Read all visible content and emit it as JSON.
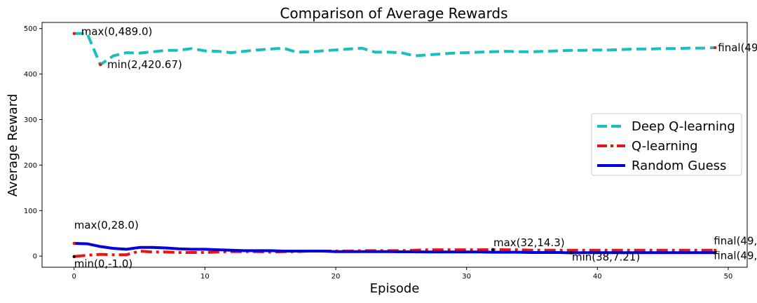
{
  "chart_data": {
    "type": "line",
    "title": "Comparison of Average Rewards",
    "xlabel": "Episode",
    "ylabel": "Average Reward",
    "xlim": [
      -2.45,
      51.45
    ],
    "ylim": [
      -24.4,
      513.4
    ],
    "xticks": [
      "0",
      "10",
      "20",
      "30",
      "40",
      "50"
    ],
    "yticks": [
      "0",
      "100",
      "200",
      "300",
      "400",
      "500"
    ],
    "grid": false,
    "legend_position": "center-right",
    "series": [
      {
        "name": "Deep Q-learning",
        "color": "#17bfbf",
        "style": "dashed",
        "x": [
          0,
          1,
          2,
          3,
          4,
          5,
          6,
          7,
          8,
          9,
          10,
          11,
          12,
          13,
          14,
          15,
          16,
          17,
          18,
          19,
          20,
          21,
          22,
          23,
          24,
          25,
          26,
          27,
          28,
          29,
          30,
          31,
          32,
          33,
          34,
          35,
          36,
          37,
          38,
          39,
          40,
          41,
          42,
          43,
          44,
          45,
          46,
          47,
          48,
          49
        ],
        "values": [
          489,
          489,
          420.67,
          440,
          447,
          446,
          449,
          452,
          452,
          456,
          451,
          450,
          447,
          450,
          453,
          455,
          457,
          448,
          449,
          451,
          453,
          455,
          457,
          448,
          448,
          447,
          440,
          442,
          444,
          446,
          447,
          448,
          449,
          450,
          449,
          449,
          450,
          451,
          452,
          452,
          453,
          453,
          454,
          455,
          455,
          456,
          456,
          457,
          457,
          458
        ]
      },
      {
        "name": "Q-learning",
        "color": "#ee1111",
        "style": "dashdot",
        "x": [
          0,
          1,
          2,
          3,
          4,
          5,
          6,
          7,
          8,
          9,
          10,
          11,
          12,
          13,
          14,
          15,
          16,
          17,
          18,
          19,
          20,
          21,
          22,
          23,
          24,
          25,
          26,
          27,
          28,
          29,
          30,
          31,
          32,
          33,
          34,
          35,
          36,
          37,
          38,
          39,
          40,
          41,
          42,
          43,
          44,
          45,
          46,
          47,
          48,
          49
        ],
        "values": [
          -1,
          2,
          4,
          3,
          3,
          11,
          9,
          9,
          8,
          8,
          8,
          9,
          10,
          10,
          10,
          9,
          10,
          10,
          11,
          11,
          11,
          11,
          12,
          12,
          12,
          12,
          13,
          14,
          14,
          14,
          14,
          14,
          14.3,
          14,
          14,
          13,
          13,
          13,
          13,
          13,
          13,
          13,
          13,
          13,
          13,
          13,
          13,
          13,
          13,
          13
        ]
      },
      {
        "name": "Random Guess",
        "color": "#0000dd",
        "style": "solid",
        "x": [
          0,
          1,
          2,
          3,
          4,
          5,
          6,
          7,
          8,
          9,
          10,
          11,
          12,
          13,
          14,
          15,
          16,
          17,
          18,
          19,
          20,
          21,
          22,
          23,
          24,
          25,
          26,
          27,
          28,
          29,
          30,
          31,
          32,
          33,
          34,
          35,
          36,
          37,
          38,
          39,
          40,
          41,
          42,
          43,
          44,
          45,
          46,
          47,
          48,
          49
        ],
        "values": [
          28,
          27,
          21,
          17,
          15,
          19,
          19,
          18,
          16,
          15,
          15,
          14,
          13,
          12,
          12,
          12,
          11,
          11,
          11,
          11,
          10,
          10,
          10,
          10,
          10,
          9.5,
          9.5,
          9,
          9,
          9,
          9,
          9,
          8.5,
          8.5,
          8.5,
          8,
          8,
          8,
          7.21,
          7.5,
          7.5,
          7.5,
          7.5,
          7.5,
          7.5,
          7.5,
          7.5,
          7.5,
          7.5,
          7.5
        ]
      }
    ],
    "annotations": [
      {
        "text": "max(0,489.0)",
        "x": 0,
        "y": 489,
        "color": "#ee1111"
      },
      {
        "text": "min(2,420.67)",
        "x": 2,
        "y": 420.67,
        "color": "#ee1111"
      },
      {
        "text": "final(49",
        "x": 49,
        "y": 458,
        "color": "#ee1111"
      },
      {
        "text": "max(0,28.0)",
        "x": 0,
        "y": 28,
        "color": "#ee1111"
      },
      {
        "text": "min(0,-1.0)",
        "x": 0,
        "y": -1,
        "color": "#000000"
      },
      {
        "text": "max(32,14.3)",
        "x": 32,
        "y": 14.3,
        "color": "#000000"
      },
      {
        "text": "min(38,7.21)",
        "x": 38,
        "y": 7.21,
        "color": "#000000"
      },
      {
        "text": "final(49,",
        "x": 49,
        "y": 13,
        "color": "#ee1111"
      },
      {
        "text": "final(49,",
        "x": 49,
        "y": 7.5,
        "color": "#000000"
      }
    ]
  }
}
